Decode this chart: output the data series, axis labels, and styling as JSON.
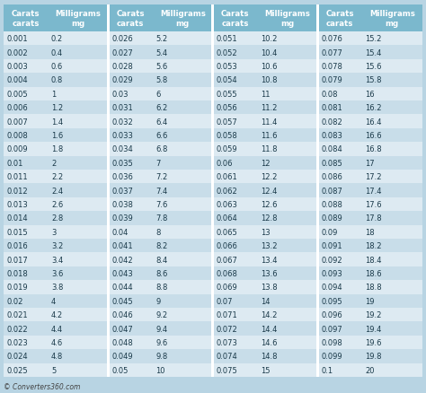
{
  "header_bg": "#7bb8cd",
  "row_bg_light": "#ddeaf2",
  "row_bg_dark": "#c8dde9",
  "fig_bg": "#b8d4e3",
  "text_color": "#1a3a4a",
  "header_text_color": "#1a3a4a",
  "divider_color": "#ffffff",
  "footer_text": "© Converters360.com",
  "columns": [
    {
      "carats": [
        "0.001",
        "0.002",
        "0.003",
        "0.004",
        "0.005",
        "0.006",
        "0.007",
        "0.008",
        "0.009",
        "0.01",
        "0.011",
        "0.012",
        "0.013",
        "0.014",
        "0.015",
        "0.016",
        "0.017",
        "0.018",
        "0.019",
        "0.02",
        "0.021",
        "0.022",
        "0.023",
        "0.024",
        "0.025"
      ],
      "mg": [
        "0.2",
        "0.4",
        "0.6",
        "0.8",
        "1",
        "1.2",
        "1.4",
        "1.6",
        "1.8",
        "2",
        "2.2",
        "2.4",
        "2.6",
        "2.8",
        "3",
        "3.2",
        "3.4",
        "3.6",
        "3.8",
        "4",
        "4.2",
        "4.4",
        "4.6",
        "4.8",
        "5"
      ]
    },
    {
      "carats": [
        "0.026",
        "0.027",
        "0.028",
        "0.029",
        "0.03",
        "0.031",
        "0.032",
        "0.033",
        "0.034",
        "0.035",
        "0.036",
        "0.037",
        "0.038",
        "0.039",
        "0.04",
        "0.041",
        "0.042",
        "0.043",
        "0.044",
        "0.045",
        "0.046",
        "0.047",
        "0.048",
        "0.049",
        "0.05"
      ],
      "mg": [
        "5.2",
        "5.4",
        "5.6",
        "5.8",
        "6",
        "6.2",
        "6.4",
        "6.6",
        "6.8",
        "7",
        "7.2",
        "7.4",
        "7.6",
        "7.8",
        "8",
        "8.2",
        "8.4",
        "8.6",
        "8.8",
        "9",
        "9.2",
        "9.4",
        "9.6",
        "9.8",
        "10"
      ]
    },
    {
      "carats": [
        "0.051",
        "0.052",
        "0.053",
        "0.054",
        "0.055",
        "0.056",
        "0.057",
        "0.058",
        "0.059",
        "0.06",
        "0.061",
        "0.062",
        "0.063",
        "0.064",
        "0.065",
        "0.066",
        "0.067",
        "0.068",
        "0.069",
        "0.07",
        "0.071",
        "0.072",
        "0.073",
        "0.074",
        "0.075"
      ],
      "mg": [
        "10.2",
        "10.4",
        "10.6",
        "10.8",
        "11",
        "11.2",
        "11.4",
        "11.6",
        "11.8",
        "12",
        "12.2",
        "12.4",
        "12.6",
        "12.8",
        "13",
        "13.2",
        "13.4",
        "13.6",
        "13.8",
        "14",
        "14.2",
        "14.4",
        "14.6",
        "14.8",
        "15"
      ]
    },
    {
      "carats": [
        "0.076",
        "0.077",
        "0.078",
        "0.079",
        "0.08",
        "0.081",
        "0.082",
        "0.083",
        "0.084",
        "0.085",
        "0.086",
        "0.087",
        "0.088",
        "0.089",
        "0.09",
        "0.091",
        "0.092",
        "0.093",
        "0.094",
        "0.095",
        "0.096",
        "0.097",
        "0.098",
        "0.099",
        "0.1"
      ],
      "mg": [
        "15.2",
        "15.4",
        "15.6",
        "15.8",
        "16",
        "16.2",
        "16.4",
        "16.6",
        "16.8",
        "17",
        "17.2",
        "17.4",
        "17.6",
        "17.8",
        "18",
        "18.2",
        "18.4",
        "18.6",
        "18.8",
        "19",
        "19.2",
        "19.4",
        "19.6",
        "19.8",
        "20"
      ]
    }
  ]
}
